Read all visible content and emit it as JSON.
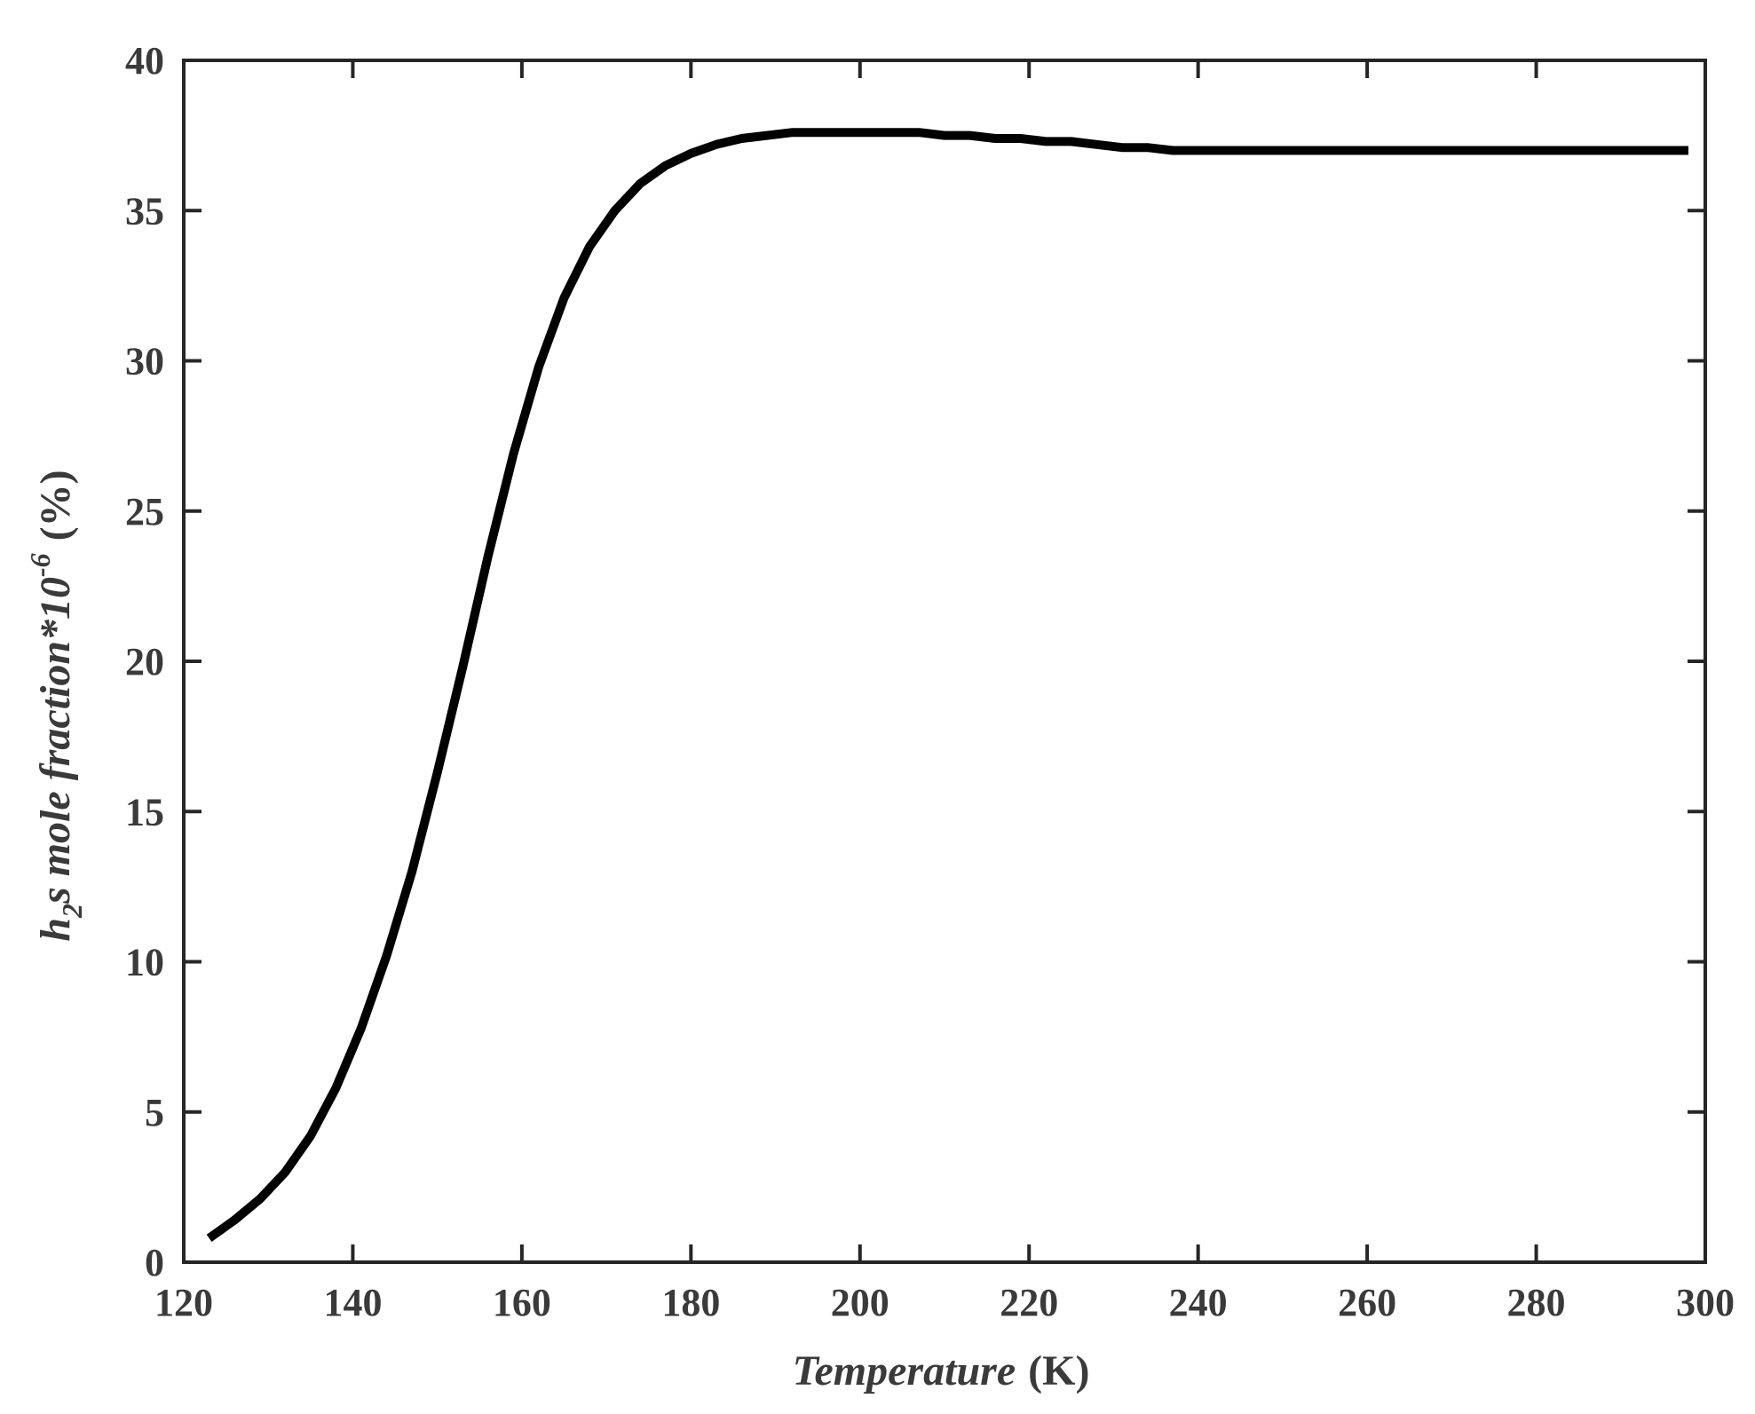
{
  "chart_data": {
    "type": "line",
    "title": "",
    "xlabel_italic": "Temperature",
    "xlabel_unit": "(K)",
    "ylabel": {
      "pre": "h",
      "sub": "2",
      "mid": "s mole fraction*10",
      "sup": "-6",
      "unit": "(%)"
    },
    "xlim": [
      120,
      300
    ],
    "ylim": [
      0,
      40
    ],
    "xticks": [
      120,
      140,
      160,
      180,
      200,
      220,
      240,
      260,
      280,
      300
    ],
    "yticks": [
      0,
      5,
      10,
      15,
      20,
      25,
      30,
      35,
      40
    ],
    "grid": false,
    "line_color": "#000000",
    "series": [
      {
        "x": [
          123,
          126,
          129,
          132,
          135,
          138,
          141,
          144,
          147,
          150,
          153,
          156,
          159,
          162,
          165,
          168,
          171,
          174,
          177,
          180,
          183,
          186,
          189,
          192,
          195,
          198,
          201,
          204,
          207,
          210,
          213,
          216,
          219,
          222,
          225,
          228,
          231,
          234,
          237,
          240,
          250,
          260,
          270,
          280,
          290,
          298
        ],
        "y": [
          0.8,
          1.4,
          2.1,
          3.0,
          4.2,
          5.8,
          7.8,
          10.2,
          13.0,
          16.3,
          19.8,
          23.5,
          26.9,
          29.8,
          32.1,
          33.8,
          35.0,
          35.9,
          36.5,
          36.9,
          37.2,
          37.4,
          37.5,
          37.6,
          37.6,
          37.6,
          37.6,
          37.6,
          37.6,
          37.5,
          37.5,
          37.4,
          37.4,
          37.3,
          37.3,
          37.2,
          37.1,
          37.1,
          37.0,
          37.0,
          37.0,
          37.0,
          37.0,
          37.0,
          37.0,
          37.0
        ]
      }
    ]
  }
}
